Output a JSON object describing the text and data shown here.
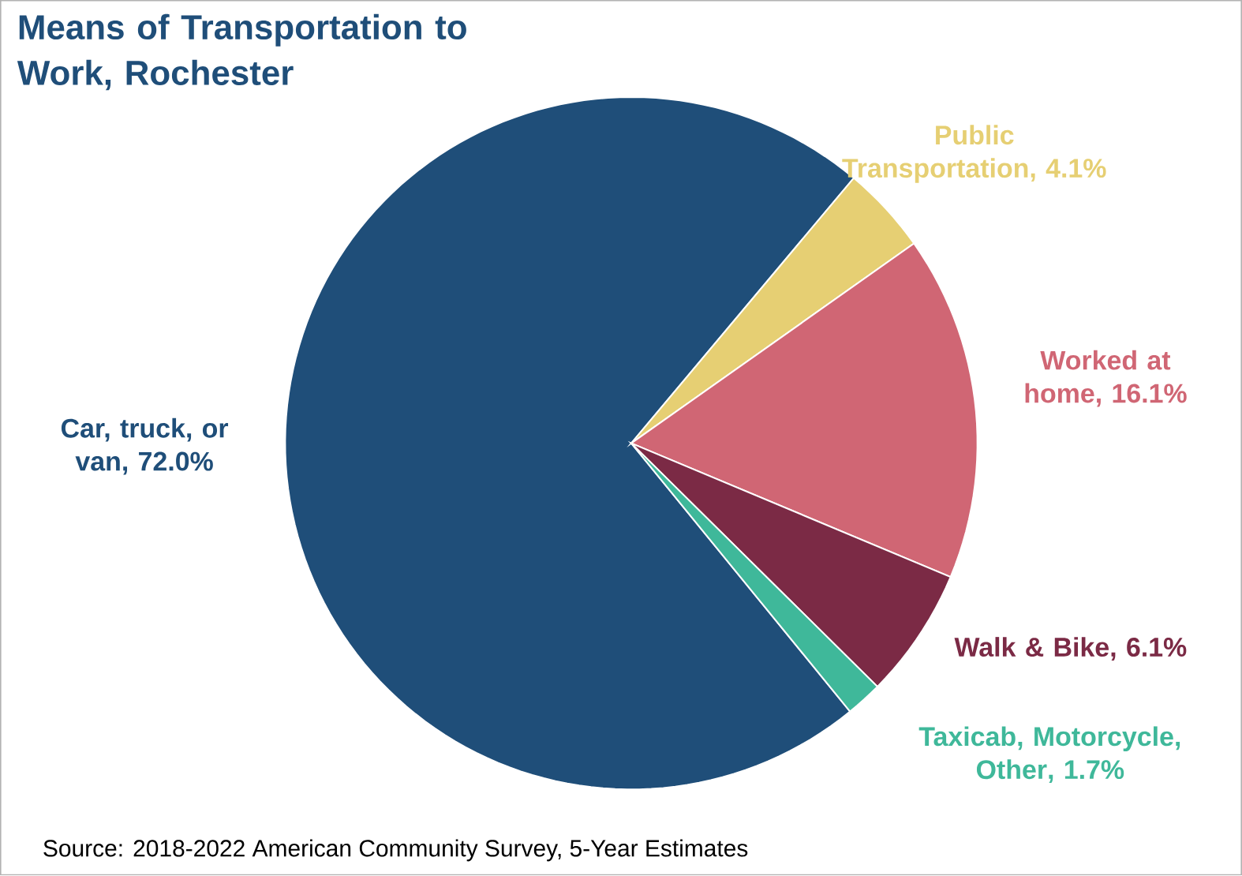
{
  "chart_data": {
    "type": "pie",
    "title": "Means of Transportation to Work,  Rochester",
    "categories": [
      "Car, truck, or van",
      "Public Transportation",
      "Worked at home",
      "Walk & Bike",
      "Taxicab, Motorcycle, Other"
    ],
    "values": [
      72.0,
      4.1,
      16.1,
      6.1,
      1.7
    ],
    "value_labels": [
      ", 72.0%",
      ", 4.1%",
      ", 16.1%",
      ", 6.1%",
      ", 1.7%"
    ],
    "colors": [
      "#1f4e79",
      "#e6cf73",
      "#d06674",
      "#7b2a45",
      "#3fb89a"
    ],
    "annotations": [
      "Source: 2018-2022 American Community Survey, 5-Year Estimates"
    ]
  }
}
